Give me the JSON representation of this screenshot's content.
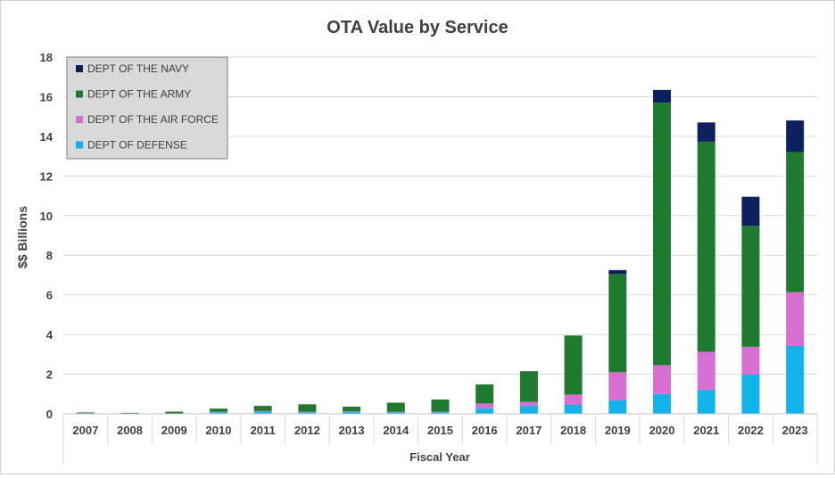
{
  "chart_data": {
    "type": "bar",
    "stacked": true,
    "title": "OTA Value by Service",
    "xlabel": "Fiscal Year",
    "ylabel": "$$ Billions",
    "ylim": [
      0,
      18
    ],
    "yticks": [
      0,
      2,
      4,
      6,
      8,
      10,
      12,
      14,
      16,
      18
    ],
    "grid": true,
    "legend_position": "top-left",
    "categories": [
      "2007",
      "2008",
      "2009",
      "2010",
      "2011",
      "2012",
      "2013",
      "2014",
      "2015",
      "2016",
      "2017",
      "2018",
      "2019",
      "2020",
      "2021",
      "2022",
      "2023"
    ],
    "series": [
      {
        "name": "DEPT OF DEFENSE",
        "color": "#12b2ea",
        "values": [
          0.03,
          0.02,
          0.02,
          0.08,
          0.12,
          0.08,
          0.1,
          0.08,
          0.08,
          0.28,
          0.4,
          0.45,
          0.68,
          1.0,
          1.2,
          1.98,
          3.42
        ]
      },
      {
        "name": "DEPT OF THE AIR FORCE",
        "color": "#d76fd2",
        "values": [
          0.0,
          0.0,
          0.0,
          0.02,
          0.02,
          0.02,
          0.02,
          0.02,
          0.02,
          0.24,
          0.2,
          0.52,
          1.42,
          1.45,
          1.93,
          1.4,
          2.72
        ]
      },
      {
        "name": "DEPT OF THE ARMY",
        "color": "#1f7a2f",
        "values": [
          0.04,
          0.03,
          0.09,
          0.16,
          0.26,
          0.38,
          0.24,
          0.46,
          0.62,
          0.96,
          1.55,
          2.98,
          4.95,
          13.25,
          10.6,
          6.1,
          7.06
        ]
      },
      {
        "name": "DEPT OF THE NAVY",
        "color": "#0d1f5c",
        "values": [
          0.0,
          0.0,
          0.0,
          0.0,
          0.0,
          0.0,
          0.0,
          0.0,
          0.0,
          0.0,
          0.0,
          0.0,
          0.2,
          0.64,
          0.97,
          1.47,
          1.6
        ]
      }
    ],
    "legend_order": [
      "DEPT OF THE NAVY",
      "DEPT OF THE ARMY",
      "DEPT OF THE AIR FORCE",
      "DEPT OF DEFENSE"
    ]
  }
}
